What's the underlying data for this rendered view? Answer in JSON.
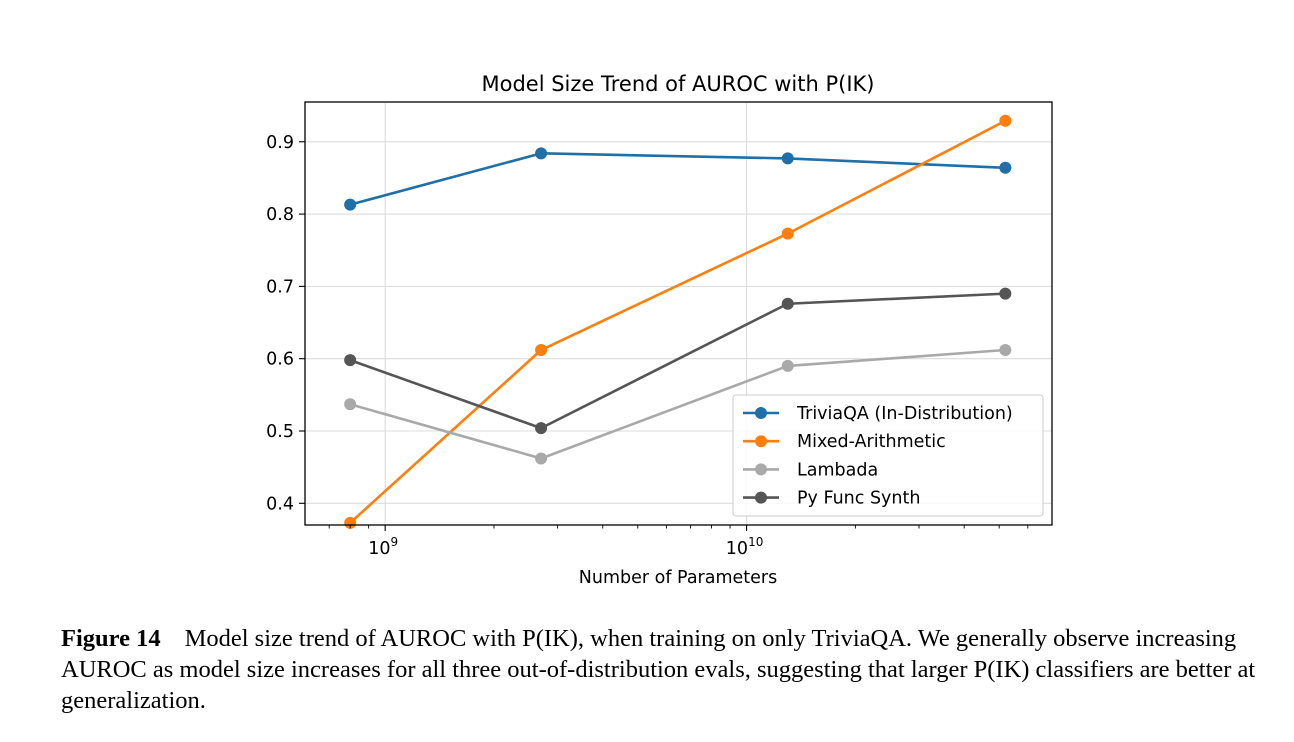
{
  "chart_data": {
    "type": "line",
    "title": "Model Size Trend of AUROC with P(IK)",
    "xlabel": "Number of Parameters",
    "ylabel": "",
    "x_scale": "log",
    "xlim": [
      600000000,
      70000000000
    ],
    "ylim": [
      0.37,
      0.955
    ],
    "x": [
      800000000,
      2700000000,
      13000000000,
      52000000000
    ],
    "x_ticks": [
      {
        "value": 1000000000,
        "base": "10",
        "exp": "9"
      },
      {
        "value": 10000000000,
        "base": "10",
        "exp": "10"
      }
    ],
    "y_ticks": [
      0.4,
      0.5,
      0.6,
      0.7,
      0.8,
      0.9
    ],
    "y_tick_labels": [
      "0.4",
      "0.5",
      "0.6",
      "0.7",
      "0.8",
      "0.9"
    ],
    "grid": true,
    "legend_position": "lower-right",
    "series": [
      {
        "name": "TriviaQA (In-Distribution)",
        "color": "#1f6fa8",
        "values": [
          0.813,
          0.884,
          0.877,
          0.864
        ]
      },
      {
        "name": "Mixed-Arithmetic",
        "color": "#ff7f0e",
        "values": [
          0.373,
          0.612,
          0.773,
          0.929
        ]
      },
      {
        "name": "Lambada",
        "color": "#a9a9a9",
        "values": [
          0.537,
          0.462,
          0.59,
          0.612
        ]
      },
      {
        "name": "Py Func Synth",
        "color": "#555555",
        "values": [
          0.598,
          0.504,
          0.676,
          0.69
        ]
      }
    ]
  },
  "caption": {
    "label": "Figure 14",
    "text": "Model size trend of AUROC with P(IK), when training on only TriviaQA. We generally observe increasing AUROC as model size increases for all three out-of-distribution evals, suggesting that larger P(IK) classifiers are better at generalization."
  }
}
